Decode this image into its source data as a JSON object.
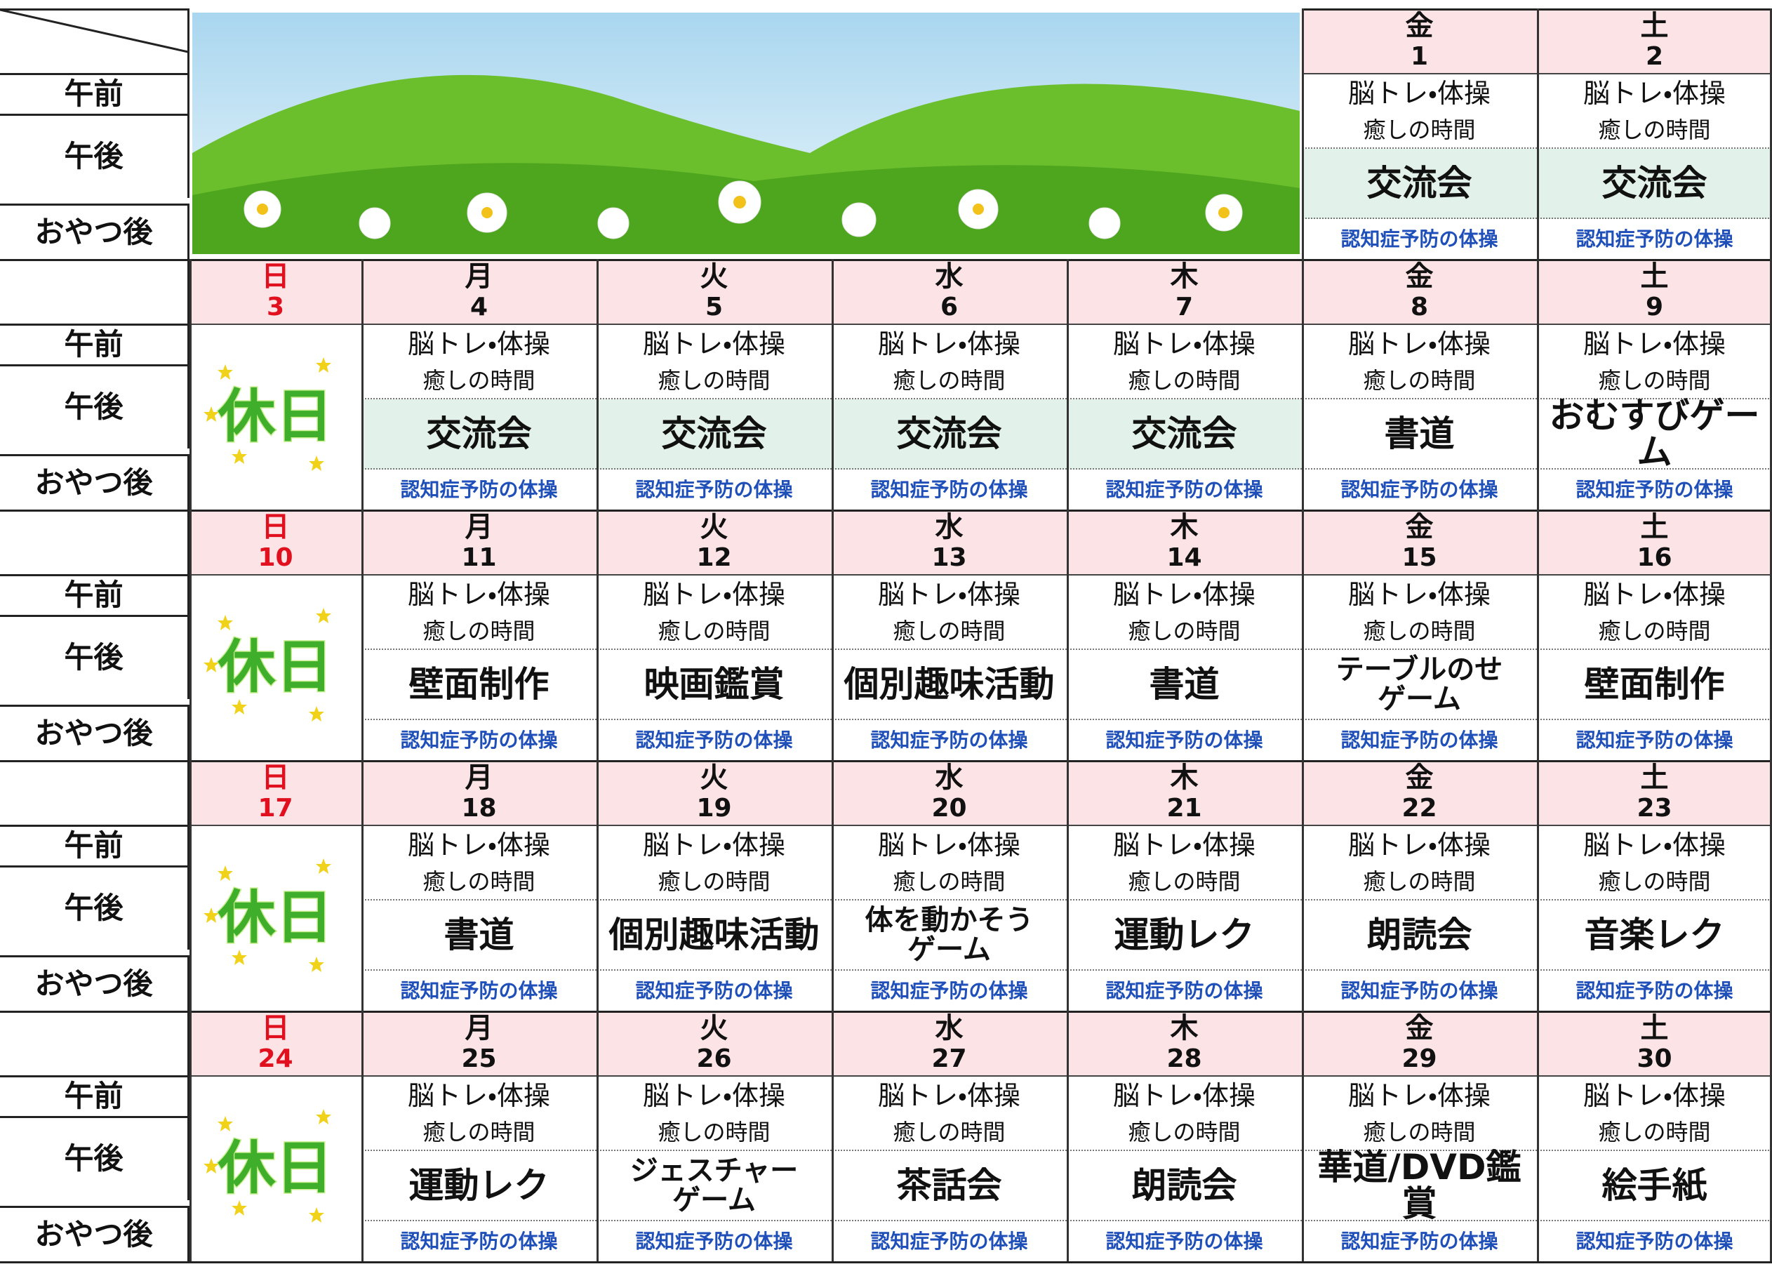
{
  "row_labels": [
    "午前",
    "午後",
    "おやつ後"
  ],
  "weeks": [
    {
      "days": [
        {
          "weekday": "金",
          "date": "1",
          "am": "脳トレ・体操",
          "pm": "癒しの時間",
          "event": "交流会",
          "event_color": "#e2f1ea",
          "snack": "認知症予防の体操"
        },
        {
          "weekday": "土",
          "date": "2",
          "am": "脳トレ・体操",
          "pm": "癒しの時間",
          "event": "交流会",
          "event_color": "#e2f1ea",
          "snack": "認知症予防の体操"
        }
      ]
    },
    {
      "days": [
        {
          "weekday": "日",
          "date": "3",
          "holiday": "休日",
          "color": "#e0101e"
        },
        {
          "weekday": "月",
          "date": "4",
          "am": "脳トレ・体操",
          "pm": "癒しの時間",
          "event": "交流会",
          "event_color": "#e2f1ea",
          "snack": "認知症予防の体操"
        },
        {
          "weekday": "火",
          "date": "5",
          "am": "脳トレ・体操",
          "pm": "癒しの時間",
          "event": "交流会",
          "event_color": "#e2f1ea",
          "snack": "認知症予防の体操"
        },
        {
          "weekday": "水",
          "date": "6",
          "am": "脳トレ・体操",
          "pm": "癒しの時間",
          "event": "交流会",
          "event_color": "#e2f1ea",
          "snack": "認知症予防の体操"
        },
        {
          "weekday": "木",
          "date": "7",
          "am": "脳トレ・体操",
          "pm": "癒しの時間",
          "event": "交流会",
          "event_color": "#e2f1ea",
          "snack": "認知症予防の体操"
        },
        {
          "weekday": "金",
          "date": "8",
          "am": "脳トレ・体操",
          "pm": "癒しの時間",
          "event": "書道",
          "snack": "認知症予防の体操"
        },
        {
          "weekday": "土",
          "date": "9",
          "am": "脳トレ・体操",
          "pm": "癒しの時間",
          "event": "おむすびゲーム",
          "snack": "認知症予防の体操"
        }
      ]
    },
    {
      "days": [
        {
          "weekday": "日",
          "date": "10",
          "holiday": "休日",
          "color": "#e0101e"
        },
        {
          "weekday": "月",
          "date": "11",
          "am": "脳トレ・体操",
          "pm": "癒しの時間",
          "event": "壁面制作",
          "snack": "認知症予防の体操"
        },
        {
          "weekday": "火",
          "date": "12",
          "am": "脳トレ・体操",
          "pm": "癒しの時間",
          "event": "映画鑑賞",
          "snack": "認知症予防の体操"
        },
        {
          "weekday": "水",
          "date": "13",
          "am": "脳トレ・体操",
          "pm": "癒しの時間",
          "event": "個別趣味活動",
          "snack": "認知症予防の体操"
        },
        {
          "weekday": "木",
          "date": "14",
          "am": "脳トレ・体操",
          "pm": "癒しの時間",
          "event": "書道",
          "snack": "認知症予防の体操"
        },
        {
          "weekday": "金",
          "date": "15",
          "am": "脳トレ・体操",
          "pm": "癒しの時間",
          "event": "テーブルのせ\nゲーム",
          "snack": "認知症予防の体操"
        },
        {
          "weekday": "土",
          "date": "16",
          "am": "脳トレ・体操",
          "pm": "癒しの時間",
          "event": "壁面制作",
          "snack": "認知症予防の体操"
        }
      ]
    },
    {
      "days": [
        {
          "weekday": "日",
          "date": "17",
          "holiday": "休日",
          "color": "#e0101e"
        },
        {
          "weekday": "月",
          "date": "18",
          "am": "脳トレ・体操",
          "pm": "癒しの時間",
          "event": "書道",
          "snack": "認知症予防の体操"
        },
        {
          "weekday": "火",
          "date": "19",
          "am": "脳トレ・体操",
          "pm": "癒しの時間",
          "event": "個別趣味活動",
          "snack": "認知症予防の体操"
        },
        {
          "weekday": "水",
          "date": "20",
          "am": "脳トレ・体操",
          "pm": "癒しの時間",
          "event": "体を動かそう\nゲーム",
          "snack": "認知症予防の体操"
        },
        {
          "weekday": "木",
          "date": "21",
          "am": "脳トレ・体操",
          "pm": "癒しの時間",
          "event": "運動レク",
          "snack": "認知症予防の体操"
        },
        {
          "weekday": "金",
          "date": "22",
          "am": "脳トレ・体操",
          "pm": "癒しの時間",
          "event": "朗読会",
          "snack": "認知症予防の体操"
        },
        {
          "weekday": "土",
          "date": "23",
          "am": "脳トレ・体操",
          "pm": "癒しの時間",
          "event": "音楽レク",
          "snack": "認知症予防の体操"
        }
      ]
    },
    {
      "days": [
        {
          "weekday": "日",
          "date": "24",
          "holiday": "休日",
          "color": "#e0101e"
        },
        {
          "weekday": "月",
          "date": "25",
          "am": "脳トレ・体操",
          "pm": "癒しの時間",
          "event": "運動レク",
          "snack": "認知症予防の体操"
        },
        {
          "weekday": "火",
          "date": "26",
          "am": "脳トレ・体操",
          "pm": "癒しの時間",
          "event": "ジェスチャー\nゲーム",
          "snack": "認知症予防の体操"
        },
        {
          "weekday": "水",
          "date": "27",
          "am": "脳トレ・体操",
          "pm": "癒しの時間",
          "event": "茶話会",
          "snack": "認知症予防の体操"
        },
        {
          "weekday": "木",
          "date": "28",
          "am": "脳トレ・体操",
          "pm": "癒しの時間",
          "event": "朗読会",
          "snack": "認知症予防の体操"
        },
        {
          "weekday": "金",
          "date": "29",
          "am": "脳トレ・体操",
          "pm": "癒しの時間",
          "event": "華道/DVD鑑賞",
          "snack": "認知症予防の体操"
        },
        {
          "weekday": "土",
          "date": "30",
          "am": "脳トレ・体操",
          "pm": "癒しの時間",
          "event": "絵手紙",
          "snack": "認知症予防の体操"
        }
      ]
    }
  ]
}
